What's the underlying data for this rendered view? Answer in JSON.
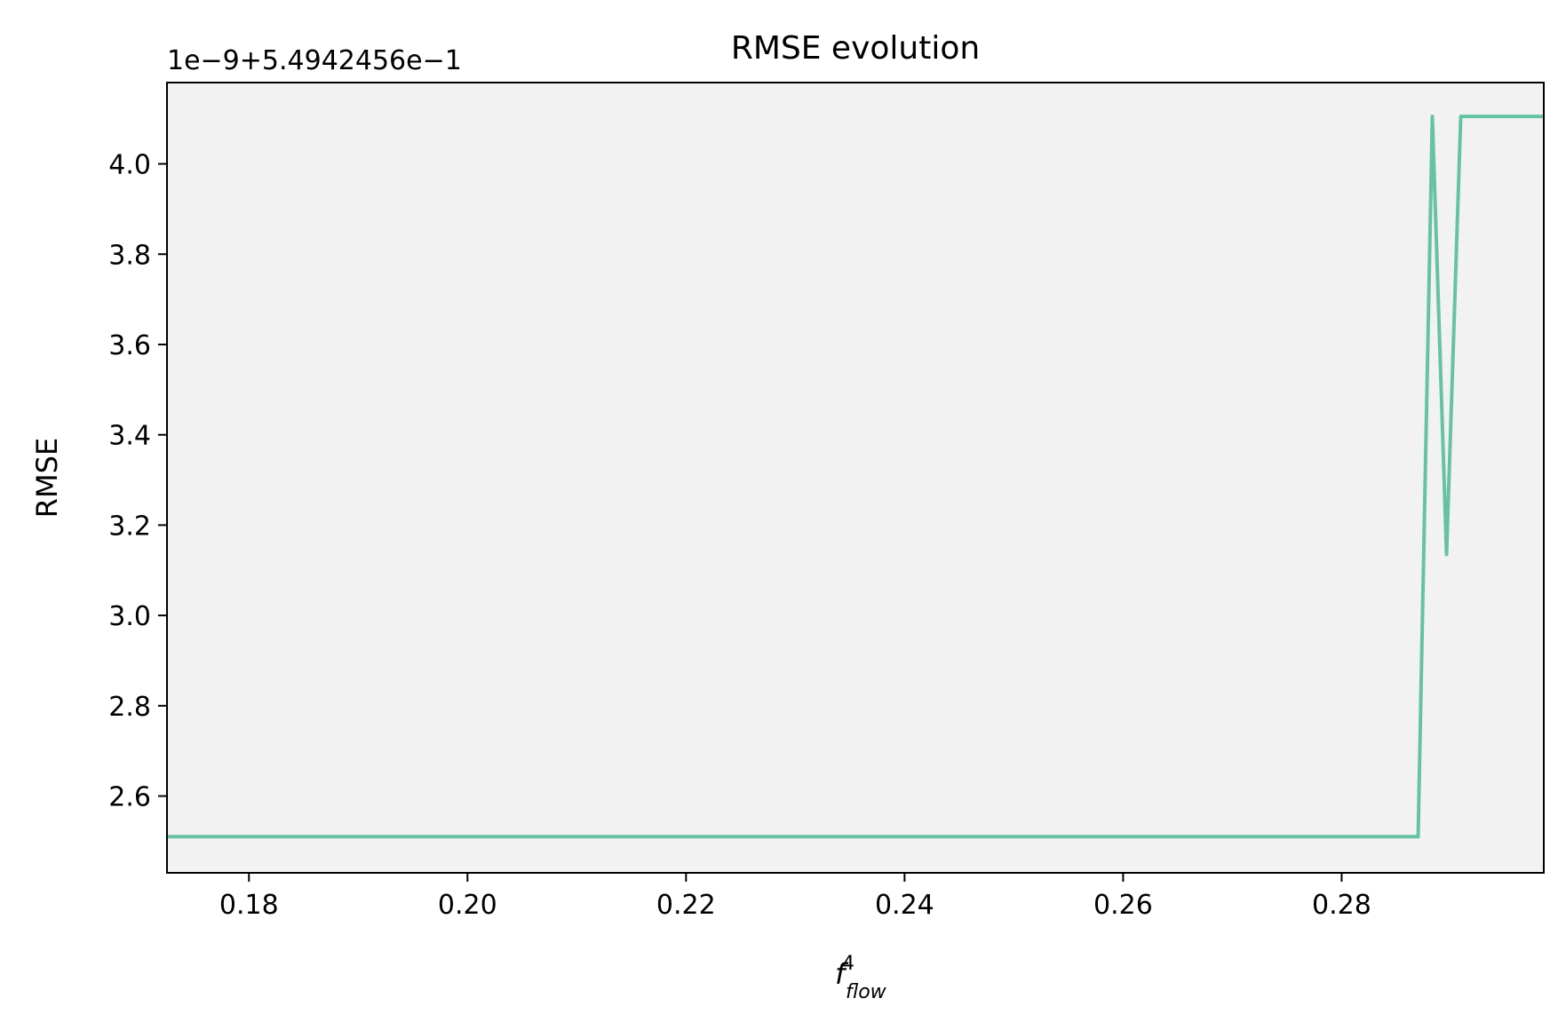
{
  "chart_data": {
    "type": "line",
    "title": "RMSE evolution",
    "xlabel_base": "f",
    "xlabel_sub": "flow",
    "xlabel_sup": "4",
    "ylabel": "RMSE",
    "offset_text": "1e−9+5.4942456e−1",
    "xlim": [
      0.1725,
      0.2985
    ],
    "ylim": [
      2.43,
      4.18
    ],
    "x_ticks": [
      0.18,
      0.2,
      0.22,
      0.24,
      0.26,
      0.28
    ],
    "x_tick_labels": [
      "0.18",
      "0.20",
      "0.22",
      "0.24",
      "0.26",
      "0.28"
    ],
    "y_ticks": [
      2.6,
      2.8,
      3.0,
      3.2,
      3.4,
      3.6,
      3.8,
      4.0
    ],
    "y_tick_labels": [
      "2.6",
      "2.8",
      "3.0",
      "3.2",
      "3.4",
      "3.6",
      "3.8",
      "4.0"
    ],
    "grid": false,
    "series": [
      {
        "color": "#66c2a5",
        "x": [
          0.1725,
          0.287,
          0.2883,
          0.2896,
          0.2909,
          0.2985
        ],
        "y": [
          2.51,
          2.51,
          4.105,
          3.135,
          4.105,
          4.105
        ]
      }
    ],
    "colors": {
      "plot_bg": "#f2f2f2",
      "axes": "#000000"
    }
  }
}
